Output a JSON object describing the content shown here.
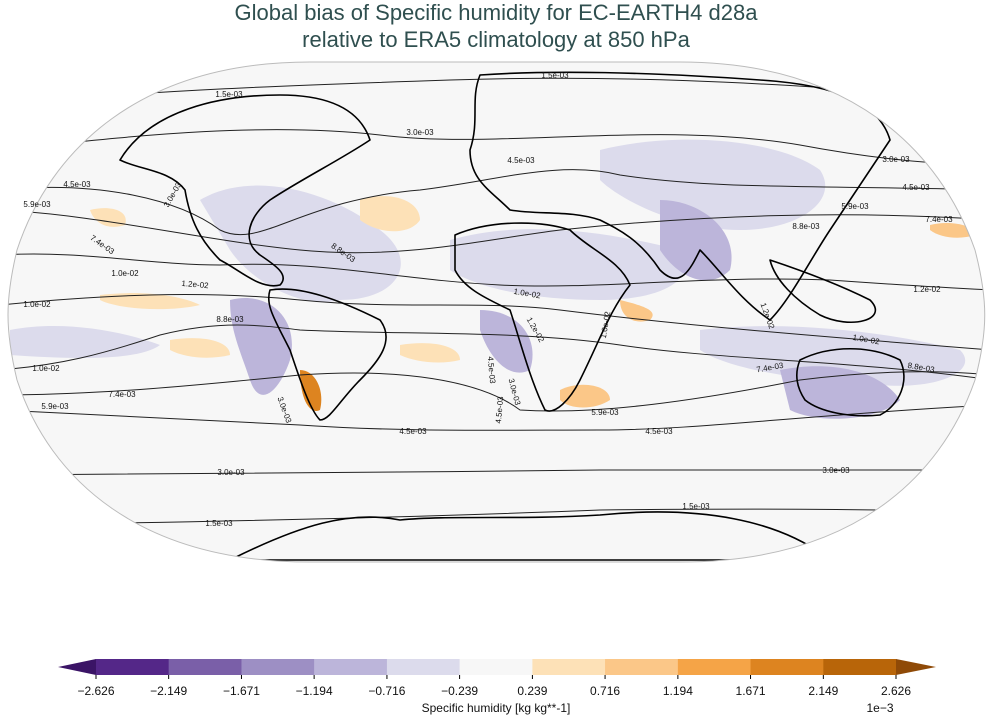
{
  "title": [
    "Global bias of Specific humidity for EC-EARTH4 d28a",
    "relative to ERA5 climatology at 850 hPa"
  ],
  "contour_labels": [
    "1.5e-03",
    "1.5e-03",
    "1.5e-03",
    "1.5e-03",
    "3.0e-03",
    "3.0e-03",
    "3.0e-03",
    "3.0e-03",
    "3.0e-03",
    "3.0e-03",
    "3.0e-03",
    "4.5e-03",
    "4.5e-03",
    "4.5e-03",
    "4.5e-03",
    "4.5e-03",
    "4.5e-03",
    "4.5e-03",
    "5.9e-03",
    "5.9e-03",
    "5.9e-03",
    "5.9e-03",
    "7.4e-03",
    "7.4e-03",
    "7.4e-03",
    "7.4e-03",
    "8.8e-03",
    "8.8e-03",
    "8.8e-03",
    "8.8e-03",
    "1.0e-02",
    "1.0e-02",
    "1.0e-02",
    "1.0e-02",
    "1.0e-02",
    "1.0e-02",
    "1.2e-02",
    "1.2e-02",
    "1.2e-02",
    "1.2e-02"
  ],
  "colorbar": {
    "ticks": [
      {
        "value": -2.626,
        "label": "−2.626"
      },
      {
        "value": -2.149,
        "label": "−2.149"
      },
      {
        "value": -1.671,
        "label": "−1.671"
      },
      {
        "value": -1.194,
        "label": "−1.194"
      },
      {
        "value": -0.716,
        "label": "−0.716"
      },
      {
        "value": -0.239,
        "label": "−0.239"
      },
      0.239,
      0.716,
      1.194,
      1.671,
      2.149,
      2.626
    ],
    "colors": [
      "#542788",
      "#7a5fa8",
      "#9d8fc4",
      "#bcb5da",
      "#dcdbec",
      "#f7f7f7",
      "#fde1b7",
      "#fbc788",
      "#f5a447",
      "#dd8420",
      "#b86509"
    ],
    "extend_colors": [
      "#3b1466",
      "#8f4a07"
    ],
    "label": "Specific humidity [kg kg**-1]",
    "multiplier": "1e−3"
  }
}
